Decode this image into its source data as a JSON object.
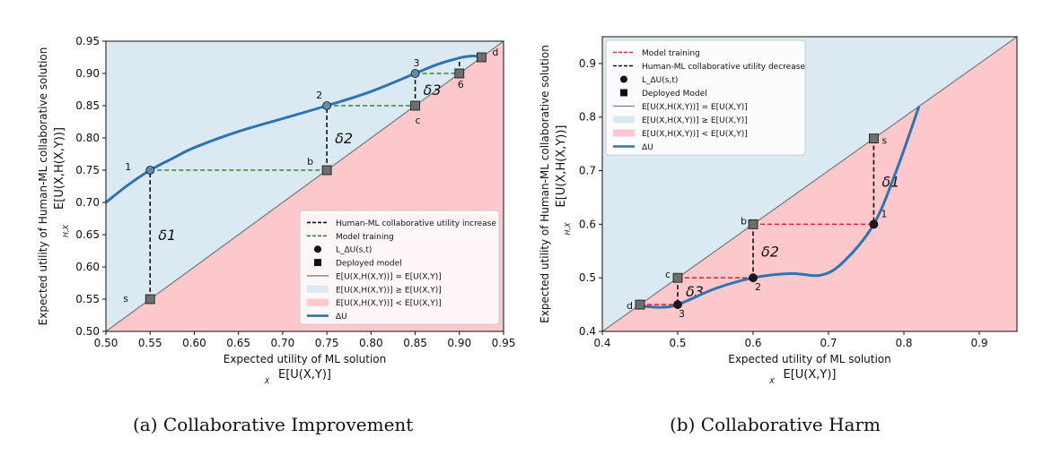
{
  "chart_data": [
    {
      "type": "line",
      "caption": "(a) Collaborative Improvement",
      "xlabel": "Expected utility of ML solution",
      "xlabel_sub": "E[U(X,Y)]",
      "xlabel_sub_index": "X",
      "ylabel": "Expected utility of Human-ML collaborative solution",
      "ylabel_sub": "E[U(X,H(X,Y))]",
      "ylabel_sub_index": "H,X",
      "xlim": [
        0.5,
        0.95
      ],
      "ylim": [
        0.5,
        0.95
      ],
      "xticks": [
        "0.50",
        "0.55",
        "0.60",
        "0.65",
        "0.70",
        "0.75",
        "0.80",
        "0.85",
        "0.90",
        "0.95"
      ],
      "yticks": [
        "0.50",
        "0.55",
        "0.60",
        "0.65",
        "0.70",
        "0.75",
        "0.80",
        "0.85",
        "0.90",
        "0.95"
      ],
      "grid": false,
      "legend_position": "bottom-right",
      "legend": [
        {
          "label": "Human-ML collaborative utility increase",
          "style": "dashed-black"
        },
        {
          "label": "Model training",
          "style": "dashed-green"
        },
        {
          "label": "L_ΔU(s,t)",
          "style": "circle"
        },
        {
          "label": "Deployed model",
          "style": "square"
        },
        {
          "label": "E[U(X,H(X,Y))] = E[U(X,Y)]",
          "style": "gray-line"
        },
        {
          "label": "E[U(X,H(X,Y))] ≥ E[U(X,Y)]",
          "style": "blue-patch"
        },
        {
          "label": "E[U(X,H(X,Y))] < E[U(X,Y)]",
          "style": "red-patch"
        },
        {
          "label": "ΔU",
          "style": "blue-line"
        }
      ],
      "curve": {
        "x": [
          0.5,
          0.525,
          0.55,
          0.575,
          0.6,
          0.65,
          0.7,
          0.75,
          0.8,
          0.85,
          0.875,
          0.9,
          0.915,
          0.93
        ],
        "y": [
          0.7,
          0.727,
          0.75,
          0.768,
          0.785,
          0.81,
          0.83,
          0.85,
          0.872,
          0.9,
          0.914,
          0.924,
          0.927,
          0.925
        ]
      },
      "circle_points": [
        {
          "label": "1",
          "x": 0.55,
          "y": 0.75
        },
        {
          "label": "2",
          "x": 0.75,
          "y": 0.85
        },
        {
          "label": "3",
          "x": 0.85,
          "y": 0.9
        }
      ],
      "square_points": [
        {
          "label": "s",
          "x": 0.55,
          "y": 0.55
        },
        {
          "label": "b",
          "x": 0.75,
          "y": 0.75
        },
        {
          "label": "c",
          "x": 0.85,
          "y": 0.85
        },
        {
          "label": "d",
          "x": 0.925,
          "y": 0.925
        },
        {
          "label": "6",
          "x": 0.9,
          "y": 0.9
        }
      ],
      "black_dashed": [
        {
          "x1": 0.55,
          "y1": 0.55,
          "x2": 0.55,
          "y2": 0.75,
          "label": "δ1"
        },
        {
          "x1": 0.75,
          "y1": 0.75,
          "x2": 0.75,
          "y2": 0.85,
          "label": "δ2"
        },
        {
          "x1": 0.85,
          "y1": 0.85,
          "x2": 0.85,
          "y2": 0.9,
          "label": "δ3"
        },
        {
          "x1": 0.9,
          "y1": 0.9,
          "x2": 0.9,
          "y2": 0.924,
          "label": ""
        }
      ],
      "green_dashed": [
        {
          "x1": 0.55,
          "y1": 0.75,
          "x2": 0.75,
          "y2": 0.75
        },
        {
          "x1": 0.75,
          "y1": 0.85,
          "x2": 0.85,
          "y2": 0.85
        },
        {
          "x1": 0.85,
          "y1": 0.9,
          "x2": 0.9,
          "y2": 0.9
        }
      ]
    },
    {
      "type": "line",
      "caption": "(b) Collaborative Harm",
      "xlabel": "Expected utility of ML solution",
      "xlabel_sub": "E[U(X,Y)]",
      "xlabel_sub_index": "X",
      "ylabel": "Expected utility of Human-ML collaborative solution",
      "ylabel_sub": "E[U(X,H(X,Y))]",
      "ylabel_sub_index": "H,X",
      "xlim": [
        0.4,
        0.95
      ],
      "ylim": [
        0.4,
        0.95
      ],
      "xticks": [
        "0.4",
        "0.5",
        "0.6",
        "0.7",
        "0.8",
        "0.9"
      ],
      "yticks": [
        "0.4",
        "0.5",
        "0.6",
        "0.7",
        "0.8",
        "0.9"
      ],
      "grid": false,
      "legend_position": "top-left",
      "legend": [
        {
          "label": "Model training",
          "style": "dashed-red"
        },
        {
          "label": "Human-ML collaborative utility decrease",
          "style": "dashed-black"
        },
        {
          "label": "L_ΔU(s,t)",
          "style": "circle"
        },
        {
          "label": "Deployed Model",
          "style": "square"
        },
        {
          "label": "E[U(X,H(X,Y))] = E[U(X,Y)]",
          "style": "gray-line"
        },
        {
          "label": "E[U(X,H(X,Y))] ≥ E[U(X,Y)]",
          "style": "blue-patch"
        },
        {
          "label": "E[U(X,H(X,Y))] < E[U(X,Y)]",
          "style": "red-patch"
        },
        {
          "label": "ΔU",
          "style": "blue-line"
        }
      ],
      "curve": {
        "x": [
          0.45,
          0.475,
          0.5,
          0.55,
          0.6,
          0.65,
          0.69,
          0.72,
          0.76,
          0.79,
          0.82
        ],
        "y": [
          0.448,
          0.445,
          0.45,
          0.48,
          0.5,
          0.508,
          0.505,
          0.53,
          0.6,
          0.7,
          0.82
        ]
      },
      "circle_points": [
        {
          "label": "1",
          "x": 0.76,
          "y": 0.6
        },
        {
          "label": "2",
          "x": 0.6,
          "y": 0.5
        },
        {
          "label": "3",
          "x": 0.5,
          "y": 0.45
        }
      ],
      "square_points": [
        {
          "label": "s",
          "x": 0.76,
          "y": 0.76
        },
        {
          "label": "b",
          "x": 0.6,
          "y": 0.6
        },
        {
          "label": "c",
          "x": 0.5,
          "y": 0.5
        },
        {
          "label": "d",
          "x": 0.45,
          "y": 0.45
        }
      ],
      "black_dashed": [
        {
          "x1": 0.76,
          "y1": 0.76,
          "x2": 0.76,
          "y2": 0.6,
          "label": "δ1"
        },
        {
          "x1": 0.6,
          "y1": 0.6,
          "x2": 0.6,
          "y2": 0.5,
          "label": "δ2"
        },
        {
          "x1": 0.5,
          "y1": 0.5,
          "x2": 0.5,
          "y2": 0.45,
          "label": "δ3"
        }
      ],
      "red_dashed": [
        {
          "x1": 0.6,
          "y1": 0.6,
          "x2": 0.76,
          "y2": 0.6
        },
        {
          "x1": 0.5,
          "y1": 0.5,
          "x2": 0.6,
          "y2": 0.5
        },
        {
          "x1": 0.45,
          "y1": 0.45,
          "x2": 0.5,
          "y2": 0.45
        }
      ]
    }
  ],
  "colors": {
    "blue_region": "#dbeaf2",
    "red_region": "#fcc8cb",
    "curve": "#2b75b2",
    "diagonal": "#7f7f7f",
    "green_dash": "#2e8b2e",
    "red_dash": "#e8262a",
    "marker_square": "#6e6e6e"
  }
}
